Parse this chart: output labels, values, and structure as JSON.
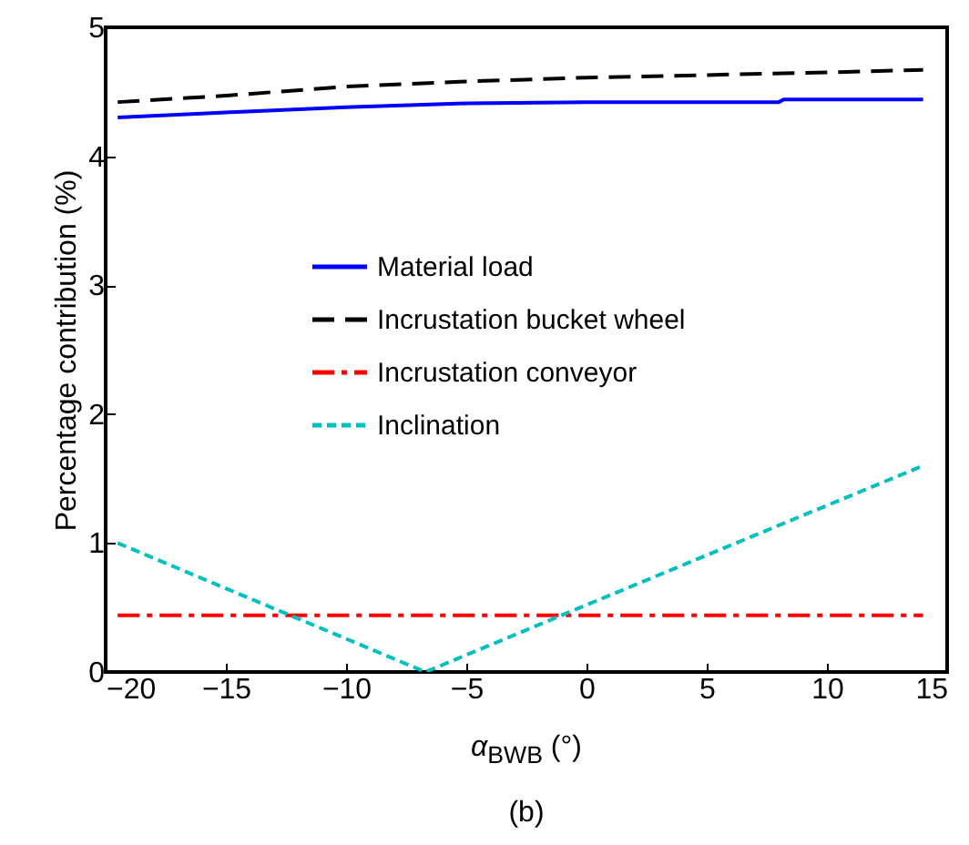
{
  "chart_data": {
    "type": "line",
    "xlabel": "α$_{BWB}$ (°)",
    "ylabel": "Percentage contribution (%)",
    "annotations": [
      "(b)"
    ],
    "xlim": [
      -20,
      15
    ],
    "xticks": [
      -20,
      -15,
      -10,
      -5,
      0,
      5,
      10,
      15
    ],
    "ylim": [
      0,
      5
    ],
    "yticks": [
      0,
      1,
      2,
      3,
      4,
      5
    ],
    "grid": false,
    "legend": "center",
    "series": [
      {
        "name": "Material load",
        "color": "#0000ff",
        "line_style": "solid",
        "x": [
          -19.5,
          -15,
          -10,
          -5,
          0,
          8,
          8.2,
          14
        ],
        "values": [
          4.3,
          4.34,
          4.38,
          4.41,
          4.42,
          4.42,
          4.44,
          4.44
        ]
      },
      {
        "name": "Incrustation bucket wheel",
        "color": "#000000",
        "line_style": "dashed",
        "x": [
          -19.5,
          -15,
          -10,
          -5,
          0,
          5,
          10,
          14
        ],
        "values": [
          4.42,
          4.47,
          4.54,
          4.58,
          4.61,
          4.63,
          4.65,
          4.67
        ]
      },
      {
        "name": "Incrustation conveyor",
        "color": "#ff0000",
        "line_style": "dashdot",
        "x": [
          -19.5,
          14
        ],
        "values": [
          0.44,
          0.44
        ]
      },
      {
        "name": "Inclination",
        "color": "#00bfbf",
        "line_style": "dotted",
        "x": [
          -19.5,
          -6.7,
          0,
          14
        ],
        "values": [
          1.0,
          0,
          0.52,
          1.6
        ]
      }
    ]
  }
}
